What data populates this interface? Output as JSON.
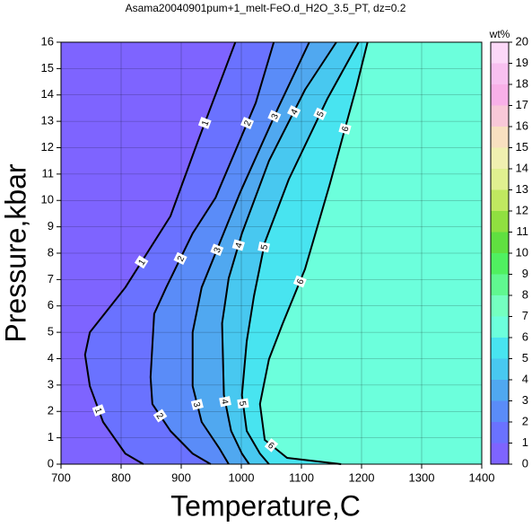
{
  "chart_data": {
    "type": "contour",
    "title": "Asama20040901pum+1_melt-FeO.d_H2O_3.5_PT, dz=0.2",
    "x_label": "Temperature,C",
    "y_label": "Pressure,kbar",
    "colorbar_label": "wt%",
    "xlim": [
      700,
      1400
    ],
    "ylim": [
      0,
      16
    ],
    "xticks": [
      700,
      800,
      900,
      1000,
      1100,
      1200,
      1300,
      1400
    ],
    "yticks": [
      0,
      1,
      2,
      3,
      4,
      5,
      6,
      7,
      8,
      9,
      10,
      11,
      12,
      13,
      14,
      15,
      16
    ],
    "zlim": [
      0,
      20
    ],
    "zticks": [
      0,
      1,
      2,
      3,
      4,
      5,
      6,
      7,
      8,
      9,
      10,
      11,
      12,
      13,
      14,
      15,
      16,
      17,
      18,
      19,
      20
    ],
    "colors": [
      "#7e64ff",
      "#6a72ff",
      "#5a8cf8",
      "#50a8f0",
      "#48c8f0",
      "#48e4f0",
      "#6cffdc",
      "#74ffc0",
      "#60f890",
      "#50f060",
      "#60e040",
      "#90e040",
      "#c0e860",
      "#e0f090",
      "#f0f0b0",
      "#f8e0c0",
      "#f8c8d8",
      "#f8b0e8",
      "#f8c0f0",
      "#fcd8f8",
      "#fff0ff"
    ],
    "grid": true,
    "series": [
      {
        "level": 1,
        "x": [
          990,
          927,
          882,
          807,
          748,
          740,
          748,
          770,
          807,
          837
        ],
        "y": [
          16,
          12.2,
          9.4,
          6.7,
          5.0,
          4.15,
          2.96,
          1.6,
          0.4,
          0
        ]
      },
      {
        "level": 2,
        "x": [
          1054,
          1024,
          957,
          919,
          875,
          855,
          849,
          852,
          882,
          919,
          949
        ],
        "y": [
          16,
          13.7,
          10.1,
          8.75,
          6.7,
          5.7,
          3.3,
          2.28,
          1.26,
          0.4,
          0
        ]
      },
      {
        "level": 3,
        "x": [
          1113,
          1061,
          998,
          934,
          919,
          919,
          934,
          964,
          979
        ],
        "y": [
          16,
          13.5,
          10.3,
          6.7,
          5.0,
          2.96,
          1.6,
          0.58,
          0
        ]
      },
      {
        "level": 4,
        "x": [
          1158,
          1106,
          1046,
          1001,
          979,
          968,
          971,
          983,
          1001,
          1013
        ],
        "y": [
          16,
          14.2,
          11.5,
          8.75,
          7.05,
          5.34,
          2.62,
          1.26,
          0.4,
          0
        ]
      },
      {
        "level": 5,
        "x": [
          1195,
          1143,
          1079,
          1039,
          1021,
          1009,
          1001,
          1009,
          1031,
          1046
        ],
        "y": [
          16,
          13.85,
          10.8,
          8.4,
          6.37,
          4.66,
          2.62,
          1.26,
          0.4,
          0
        ]
      },
      {
        "level": 6,
        "x": [
          1210,
          1192,
          1147,
          1106,
          1069,
          1046,
          1031,
          1039,
          1076,
          1166
        ],
        "y": [
          16,
          14.35,
          10.6,
          7.4,
          5.34,
          3.98,
          2.28,
          0.92,
          0.24,
          0
        ]
      }
    ]
  }
}
